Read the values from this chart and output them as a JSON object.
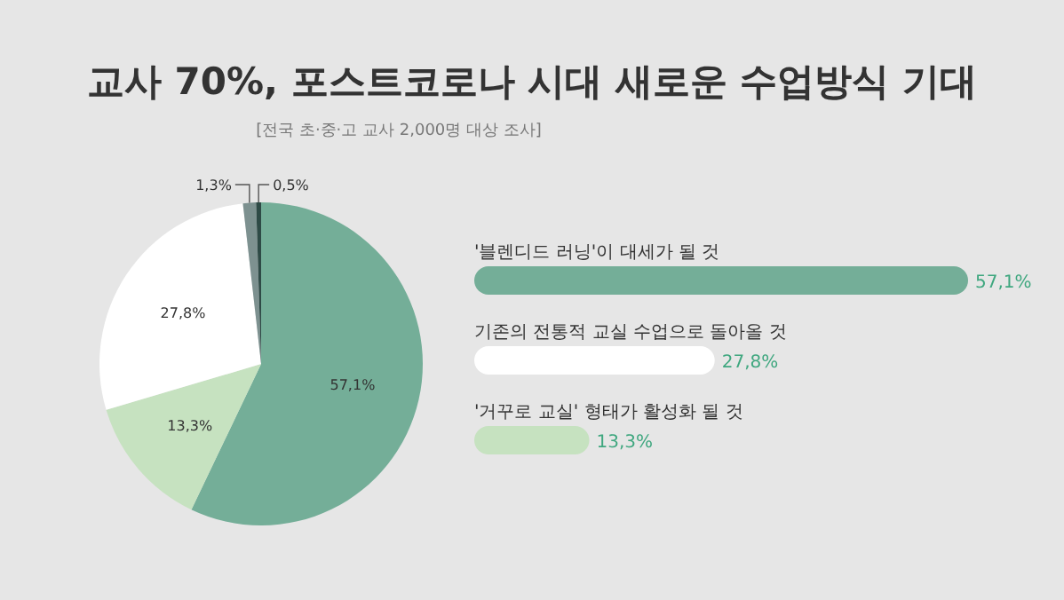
{
  "chart_data": [
    {
      "type": "pie",
      "title": "교사 70%, 포스트코로나 시대 새로운 수업방식 기대",
      "subtitle": "[전국 초·중·고 교사 2,000명 대상 조사]",
      "categories": [
        null,
        null,
        null,
        null,
        null
      ],
      "values": [
        57.1,
        13.3,
        27.8,
        1.3,
        0.5
      ],
      "colors": [
        "#74ae98",
        "#c6e2c0",
        "#ffffff",
        "#7d9190",
        "#2e4a46"
      ],
      "value_labels": [
        "57,1%",
        "13,3%",
        "27,8%",
        "1,3%",
        "0,5%"
      ]
    },
    {
      "type": "bar",
      "orientation": "horizontal",
      "categories": [
        "'블렌디드 러닝'이 대세가 될 것",
        "기존의 전통적 교실 수업으로 돌아올 것",
        "'거꾸로 교실' 형태가 활성화 될 것"
      ],
      "values": [
        57.1,
        27.8,
        13.3
      ],
      "colors": [
        "#74ae98",
        "#ffffff",
        "#c6e2c0"
      ],
      "value_labels": [
        "57,1%",
        "27,8%",
        "13,3%"
      ]
    }
  ]
}
